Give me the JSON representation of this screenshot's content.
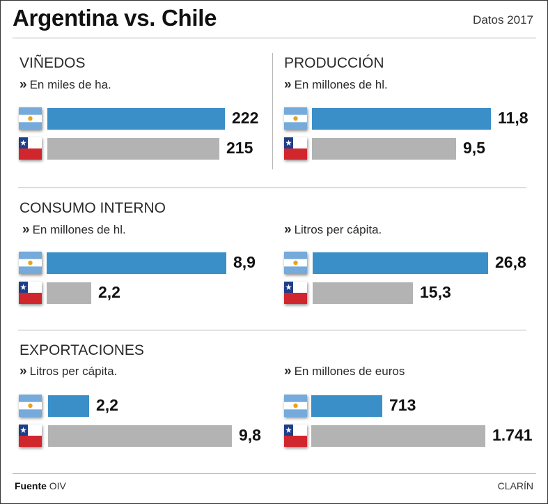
{
  "header": {
    "title": "Argentina vs. Chile",
    "subtitle": "Datos 2017"
  },
  "colors": {
    "argentina": "#3a8fc9",
    "chile": "#b3b3b3"
  },
  "flag_icons": {
    "argentina": "argentina-flag-icon",
    "chile": "chile-flag-icon"
  },
  "sections": [
    {
      "title": "VIÑEDOS"
    },
    {
      "title": "PRODUCCIÓN"
    },
    {
      "title": "CONSUMO INTERNO"
    },
    {
      "title": "EXPORTACIONES"
    }
  ],
  "chart_data": [
    {
      "type": "bar",
      "unit": "En miles de ha.",
      "categories": [
        "Argentina",
        "Chile"
      ],
      "values": [
        222,
        215
      ],
      "labels": [
        "222",
        "215"
      ],
      "xlim": [
        0,
        222
      ]
    },
    {
      "type": "bar",
      "unit": "En millones de hl.",
      "categories": [
        "Argentina",
        "Chile"
      ],
      "values": [
        11.8,
        9.5
      ],
      "labels": [
        "11,8",
        "9,5"
      ],
      "xlim": [
        0,
        11.8
      ]
    },
    {
      "type": "bar",
      "unit": "En millones de hl.",
      "categories": [
        "Argentina",
        "Chile"
      ],
      "values": [
        8.9,
        2.2
      ],
      "labels": [
        "8,9",
        "2,2"
      ],
      "xlim": [
        0,
        8.9
      ]
    },
    {
      "type": "bar",
      "unit": "Litros per cápita.",
      "categories": [
        "Argentina",
        "Chile"
      ],
      "values": [
        26.8,
        15.3
      ],
      "labels": [
        "26,8",
        "15,3"
      ],
      "xlim": [
        0,
        26.8
      ]
    },
    {
      "type": "bar",
      "unit": "Litros per cápita.",
      "categories": [
        "Argentina",
        "Chile"
      ],
      "values": [
        2.2,
        9.8
      ],
      "labels": [
        "2,2",
        "9,8"
      ],
      "xlim": [
        0,
        9.8
      ]
    },
    {
      "type": "bar",
      "unit": "En millones de euros",
      "categories": [
        "Argentina",
        "Chile"
      ],
      "values": [
        713,
        1741
      ],
      "labels": [
        "713",
        "1.741"
      ],
      "xlim": [
        0,
        1741
      ]
    }
  ],
  "footer": {
    "source_label": "Fuente",
    "source_value": "OIV",
    "brand": "CLARÍN"
  }
}
